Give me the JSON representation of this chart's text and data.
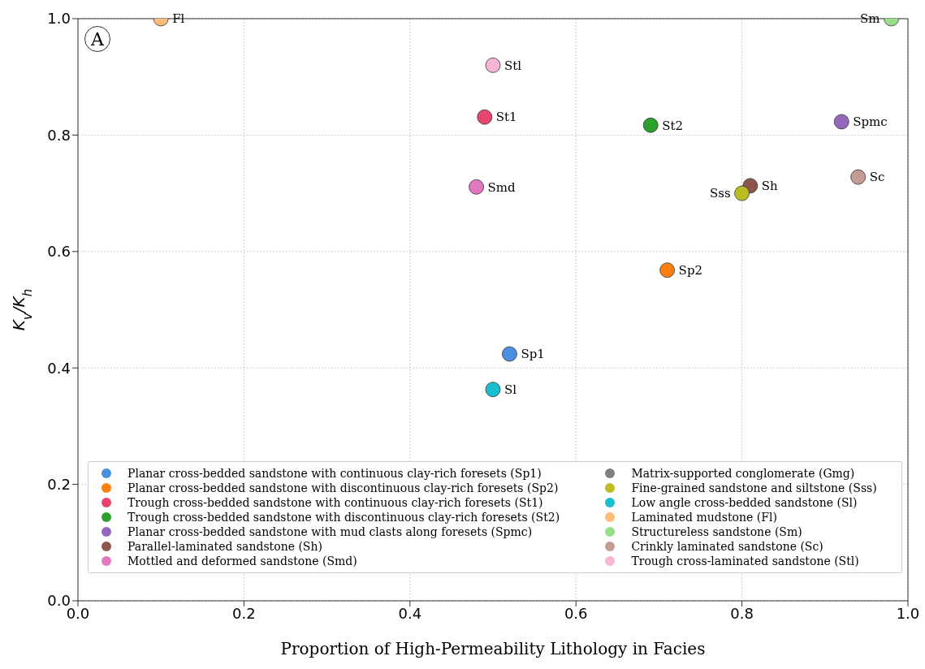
{
  "chart_data": {
    "type": "scatter",
    "xlabel": "Proportion of High-Permeability Lithology in Facies",
    "ylabel": "K$_{v}$/K$_{h}$",
    "xlim": [
      0,
      1
    ],
    "ylim": [
      0,
      1
    ],
    "xticks": [
      {
        "value": 0,
        "label": "0.0"
      },
      {
        "value": 0.2,
        "label": "0.2"
      },
      {
        "value": 0.4,
        "label": "0.4"
      },
      {
        "value": 0.6,
        "label": "0.6"
      },
      {
        "value": 0.8,
        "label": "0.8"
      },
      {
        "value": 1,
        "label": "1.0"
      }
    ],
    "yticks": [
      {
        "value": 0,
        "label": "0.0"
      },
      {
        "value": 0.2,
        "label": "0.2"
      },
      {
        "value": 0.4,
        "label": "0.4"
      },
      {
        "value": 0.6,
        "label": "0.6"
      },
      {
        "value": 0.8,
        "label": "0.8"
      },
      {
        "value": 1,
        "label": "1.0"
      }
    ],
    "grid": true,
    "legend": "bottom",
    "marker": "circle",
    "series": [
      {
        "name": "Planar cross-bedded sandstone with continuous clay-rich foresets (Sp1)",
        "color": "#4a8fe0",
        "x": [
          0.52
        ],
        "values": [
          0.424
        ]
      },
      {
        "name": "Planar cross-bedded sandstone with discontinuous clay-rich foresets (Sp2)",
        "color": "#ff7f0e",
        "x": [
          0.71
        ],
        "values": [
          0.568
        ]
      },
      {
        "name": "Trough cross-bedded sandstone with continuous clay-rich foresets (St1)",
        "color": "#e8456e",
        "x": [
          0.49
        ],
        "values": [
          0.831
        ]
      },
      {
        "name": "Trough cross-bedded sandstone with discontinuous clay-rich foresets (St2)",
        "color": "#2ca02c",
        "x": [
          0.69
        ],
        "values": [
          0.817
        ]
      },
      {
        "name": "Planar cross-bedded sandstone with mud clasts along foresets (Spmc)",
        "color": "#9467bd",
        "x": [
          0.92
        ],
        "values": [
          0.823
        ]
      },
      {
        "name": "Parallel-laminated sandstone (Sh)",
        "color": "#8c564b",
        "x": [
          0.81
        ],
        "values": [
          0.713
        ]
      },
      {
        "name": "Mottled and deformed sandstone (Smd)",
        "color": "#e377c2",
        "x": [
          0.48
        ],
        "values": [
          0.711
        ]
      },
      {
        "name": "Matrix-supported conglomerate (Gmg)",
        "color": "#7f7f7f"
      },
      {
        "name": "Fine-grained sandstone and siltstone (Sss)",
        "color": "#bcbd22",
        "x": [
          0.8
        ],
        "values": [
          0.7
        ]
      },
      {
        "name": "Low angle cross-bedded sandstone (Sl)",
        "color": "#17becf",
        "x": [
          0.5
        ],
        "values": [
          0.363
        ]
      },
      {
        "name": "Laminated mudstone (Fl)",
        "color": "#ffbb78",
        "x": [
          0.1
        ],
        "values": [
          1.0
        ]
      },
      {
        "name": "Structureless sandstone (Sm)",
        "color": "#98df8a",
        "x": [
          0.98
        ],
        "values": [
          1.0
        ]
      },
      {
        "name": "Crinkly laminated sandstone (Sc)",
        "color": "#c49c94",
        "x": [
          0.94
        ],
        "values": [
          0.728
        ]
      },
      {
        "name": "Trough cross-laminated sandstone (Stl)",
        "color": "#f7b6d2",
        "x": [
          0.5
        ],
        "values": [
          0.92
        ]
      }
    ],
    "annotations": [
      "A",
      {
        "text": "Sp1",
        "x": 0.52,
        "y": 0.424
      },
      {
        "text": "Sp2",
        "x": 0.71,
        "y": 0.568
      },
      {
        "text": "St1",
        "x": 0.49,
        "y": 0.831
      },
      {
        "text": "St2",
        "x": 0.69,
        "y": 0.817
      },
      {
        "text": "Spmc",
        "x": 0.92,
        "y": 0.823
      },
      {
        "text": "Sh",
        "x": 0.81,
        "y": 0.713
      },
      {
        "text": "Smd",
        "x": 0.48,
        "y": 0.711
      },
      {
        "text": "Sss",
        "x": 0.8,
        "y": 0.7
      },
      {
        "text": "Sl",
        "x": 0.5,
        "y": 0.363
      },
      {
        "text": "Fl",
        "x": 0.1,
        "y": 1.0
      },
      {
        "text": "Sm",
        "x": 0.98,
        "y": 1.0
      },
      {
        "text": "Sc",
        "x": 0.94,
        "y": 0.728
      },
      {
        "text": "Stl",
        "x": 0.5,
        "y": 0.92
      }
    ]
  }
}
